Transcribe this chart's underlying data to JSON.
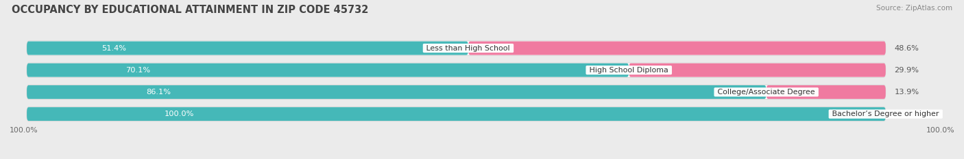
{
  "title": "OCCUPANCY BY EDUCATIONAL ATTAINMENT IN ZIP CODE 45732",
  "source": "Source: ZipAtlas.com",
  "categories": [
    "Less than High School",
    "High School Diploma",
    "College/Associate Degree",
    "Bachelor’s Degree or higher"
  ],
  "owner_pct": [
    51.4,
    70.1,
    86.1,
    100.0
  ],
  "renter_pct": [
    48.6,
    29.9,
    13.9,
    0.0
  ],
  "owner_color": "#45B8B8",
  "renter_color": "#F07AA0",
  "row_bg_color": "#e8e8e8",
  "bar_inner_bg": "#f5f5f5",
  "bg_color": "#ebebeb",
  "bar_height": 0.62,
  "title_fontsize": 10.5,
  "label_fontsize": 8.2,
  "tick_fontsize": 7.8,
  "source_fontsize": 7.5,
  "legend_fontsize": 8.5,
  "total_width": 100
}
